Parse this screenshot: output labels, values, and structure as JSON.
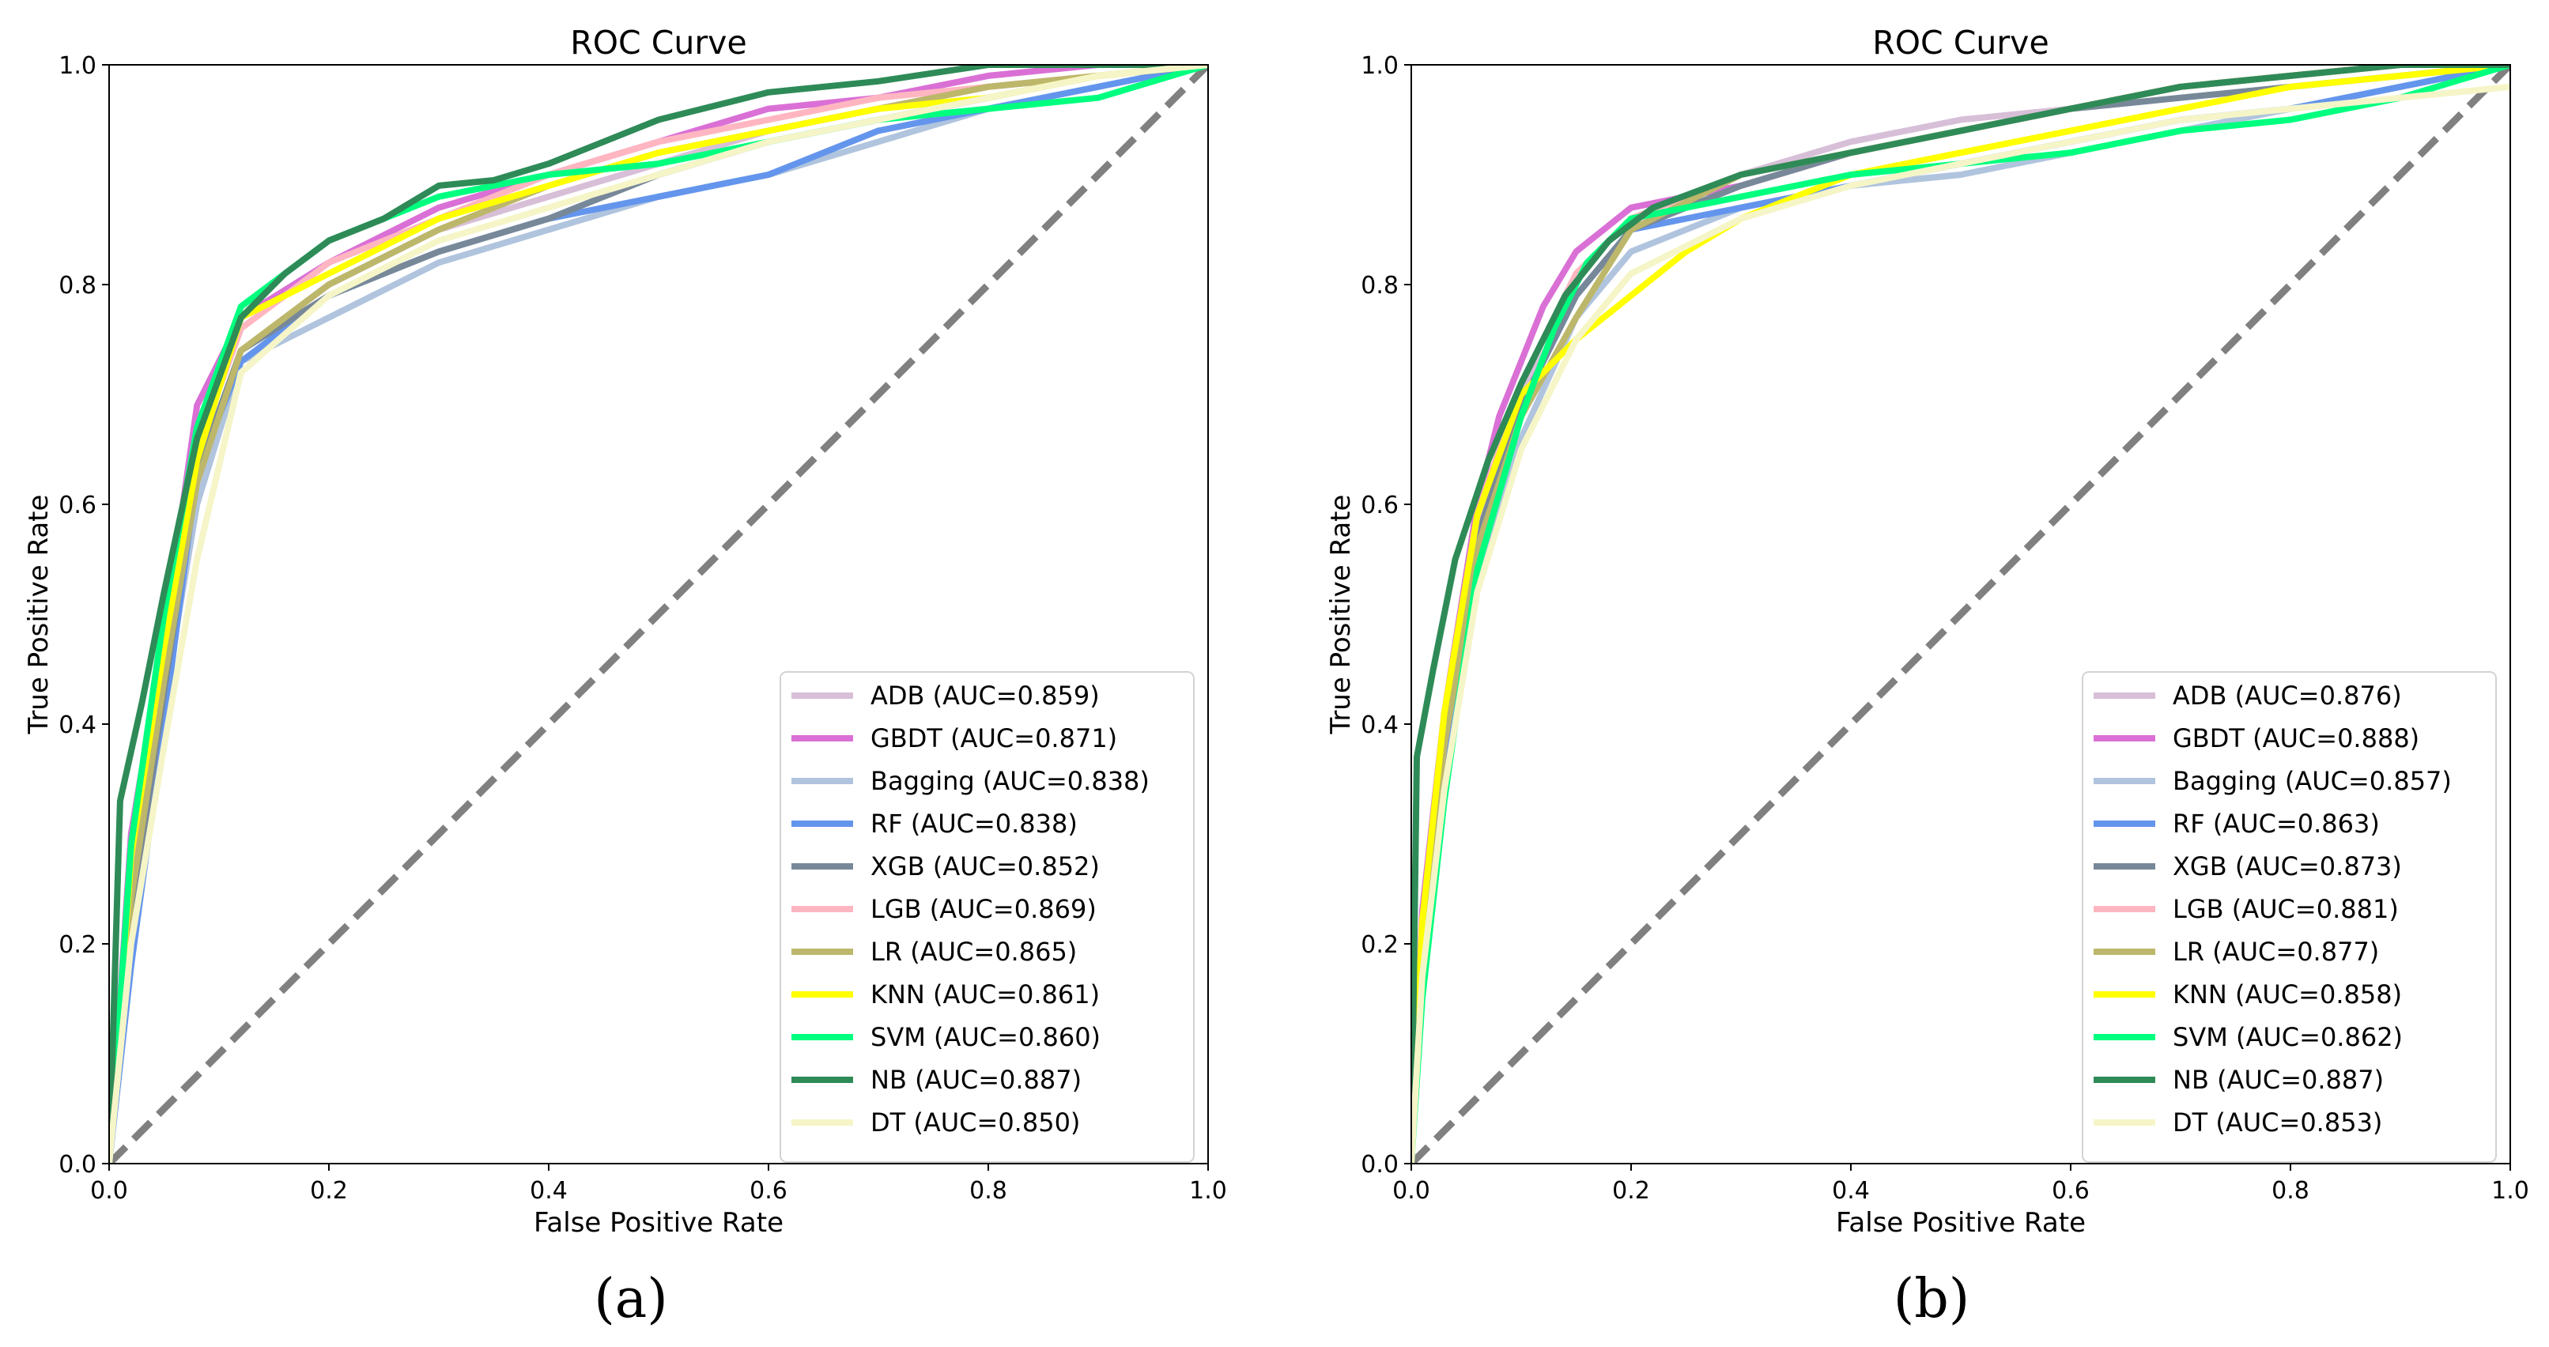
{
  "figure": {
    "panels": [
      {
        "id": "a",
        "label": "(a)"
      },
      {
        "id": "b",
        "label": "(b)"
      }
    ]
  },
  "chart_data": [
    {
      "type": "line",
      "panel": "(a)",
      "title": "ROC Curve",
      "xlabel": "False Positive Rate",
      "ylabel": "True Positive Rate",
      "xlim": [
        0,
        1
      ],
      "ylim": [
        0,
        1
      ],
      "xticks": [
        "0.0",
        "0.2",
        "0.4",
        "0.6",
        "0.8",
        "1.0"
      ],
      "yticks": [
        "0.0",
        "0.2",
        "0.4",
        "0.6",
        "0.8",
        "1.0"
      ],
      "grid": false,
      "legend_position": "lower-right",
      "diagonal": {
        "x": [
          0,
          1
        ],
        "y": [
          0,
          1
        ],
        "color": "#808080",
        "style": "dashed"
      },
      "series": [
        {
          "name": "ADB",
          "legend": "ADB (AUC=0.859)",
          "color": "#d8bfd8",
          "x": [
            0,
            0.02,
            0.05,
            0.08,
            0.12,
            0.2,
            0.3,
            0.4,
            0.5,
            0.6,
            0.7,
            0.8,
            0.9,
            1.0
          ],
          "y": [
            0,
            0.26,
            0.45,
            0.62,
            0.74,
            0.8,
            0.85,
            0.88,
            0.91,
            0.94,
            0.96,
            0.98,
            0.99,
            1.0
          ]
        },
        {
          "name": "GBDT",
          "legend": "GBDT (AUC=0.871)",
          "color": "#da70d6",
          "x": [
            0,
            0.02,
            0.05,
            0.08,
            0.12,
            0.2,
            0.3,
            0.4,
            0.5,
            0.6,
            0.7,
            0.8,
            0.9,
            1.0
          ],
          "y": [
            0,
            0.3,
            0.48,
            0.69,
            0.77,
            0.82,
            0.87,
            0.9,
            0.93,
            0.96,
            0.97,
            0.99,
            1.0,
            1.0
          ]
        },
        {
          "name": "Bagging",
          "legend": "Bagging (AUC=0.838)",
          "color": "#b0c4de",
          "x": [
            0,
            0.02,
            0.05,
            0.08,
            0.12,
            0.2,
            0.3,
            0.4,
            0.5,
            0.6,
            0.7,
            0.8,
            0.9,
            1.0
          ],
          "y": [
            0,
            0.22,
            0.42,
            0.6,
            0.73,
            0.77,
            0.82,
            0.85,
            0.88,
            0.9,
            0.93,
            0.96,
            0.98,
            1.0
          ]
        },
        {
          "name": "RF",
          "legend": "RF (AUC=0.838)",
          "color": "#6495ed",
          "x": [
            0,
            0.02,
            0.05,
            0.08,
            0.12,
            0.2,
            0.3,
            0.4,
            0.5,
            0.6,
            0.7,
            0.8,
            0.9,
            1.0
          ],
          "y": [
            0,
            0.18,
            0.4,
            0.63,
            0.73,
            0.79,
            0.83,
            0.86,
            0.88,
            0.9,
            0.94,
            0.96,
            0.98,
            1.0
          ]
        },
        {
          "name": "XGB",
          "legend": "XGB (AUC=0.852)",
          "color": "#778899",
          "x": [
            0,
            0.02,
            0.05,
            0.08,
            0.12,
            0.2,
            0.3,
            0.4,
            0.5,
            0.6,
            0.7,
            0.8,
            0.9,
            1.0
          ],
          "y": [
            0,
            0.22,
            0.43,
            0.63,
            0.74,
            0.79,
            0.83,
            0.86,
            0.9,
            0.93,
            0.95,
            0.97,
            0.99,
            1.0
          ]
        },
        {
          "name": "LGB",
          "legend": "LGB (AUC=0.869)",
          "color": "#ffb6c1",
          "x": [
            0,
            0.02,
            0.05,
            0.08,
            0.12,
            0.2,
            0.3,
            0.4,
            0.5,
            0.6,
            0.7,
            0.8,
            0.9,
            1.0
          ],
          "y": [
            0,
            0.27,
            0.46,
            0.65,
            0.76,
            0.82,
            0.86,
            0.9,
            0.93,
            0.95,
            0.97,
            0.98,
            0.99,
            1.0
          ]
        },
        {
          "name": "LR",
          "legend": "LR (AUC=0.865)",
          "color": "#bdb76b",
          "x": [
            0,
            0.02,
            0.05,
            0.08,
            0.12,
            0.2,
            0.3,
            0.4,
            0.5,
            0.6,
            0.7,
            0.8,
            0.9,
            1.0
          ],
          "y": [
            0,
            0.24,
            0.44,
            0.62,
            0.74,
            0.8,
            0.85,
            0.89,
            0.92,
            0.94,
            0.96,
            0.98,
            0.99,
            1.0
          ]
        },
        {
          "name": "KNN",
          "legend": "KNN (AUC=0.861)",
          "color": "#ffff00",
          "x": [
            0,
            0.02,
            0.05,
            0.08,
            0.12,
            0.2,
            0.3,
            0.4,
            0.5,
            0.6,
            0.7,
            0.8,
            0.9,
            1.0
          ],
          "y": [
            0,
            0.28,
            0.47,
            0.64,
            0.77,
            0.81,
            0.86,
            0.89,
            0.92,
            0.94,
            0.96,
            0.97,
            0.99,
            1.0
          ]
        },
        {
          "name": "SVM",
          "legend": "SVM (AUC=0.860)",
          "color": "#00ff7f",
          "x": [
            0,
            0.02,
            0.05,
            0.08,
            0.12,
            0.2,
            0.3,
            0.4,
            0.5,
            0.6,
            0.7,
            0.8,
            0.9,
            1.0
          ],
          "y": [
            0,
            0.29,
            0.5,
            0.67,
            0.78,
            0.84,
            0.88,
            0.9,
            0.91,
            0.93,
            0.95,
            0.96,
            0.97,
            1.0
          ]
        },
        {
          "name": "NB",
          "legend": "NB (AUC=0.887)",
          "color": "#2e8b57",
          "x": [
            0,
            0.01,
            0.03,
            0.05,
            0.08,
            0.12,
            0.16,
            0.2,
            0.25,
            0.3,
            0.35,
            0.4,
            0.45,
            0.5,
            0.6,
            0.7,
            0.8,
            0.9,
            1.0
          ],
          "y": [
            0,
            0.33,
            0.42,
            0.52,
            0.66,
            0.77,
            0.81,
            0.84,
            0.86,
            0.89,
            0.895,
            0.91,
            0.93,
            0.95,
            0.975,
            0.985,
            1.0,
            1.0,
            1.0
          ]
        },
        {
          "name": "DT",
          "legend": "DT (AUC=0.850)",
          "color": "#f5f5c8",
          "x": [
            0,
            0.02,
            0.05,
            0.08,
            0.12,
            0.2,
            0.3,
            0.4,
            0.5,
            0.6,
            0.7,
            0.8,
            0.9,
            1.0
          ],
          "y": [
            0,
            0.2,
            0.38,
            0.55,
            0.72,
            0.79,
            0.84,
            0.87,
            0.9,
            0.93,
            0.95,
            0.97,
            0.99,
            1.0
          ]
        }
      ]
    },
    {
      "type": "line",
      "panel": "(b)",
      "title": "ROC Curve",
      "xlabel": "False Positive Rate",
      "ylabel": "True Positive Rate",
      "xlim": [
        0,
        1
      ],
      "ylim": [
        0,
        1
      ],
      "xticks": [
        "0.0",
        "0.2",
        "0.4",
        "0.6",
        "0.8",
        "1.0"
      ],
      "yticks": [
        "0.0",
        "0.2",
        "0.4",
        "0.6",
        "0.8",
        "1.0"
      ],
      "grid": false,
      "legend_position": "lower-right",
      "diagonal": {
        "x": [
          0,
          1
        ],
        "y": [
          0,
          1
        ],
        "color": "#808080",
        "style": "dashed"
      },
      "series": [
        {
          "name": "ADB",
          "legend": "ADB (AUC=0.876)",
          "color": "#d8bfd8",
          "x": [
            0,
            0.01,
            0.03,
            0.06,
            0.1,
            0.15,
            0.2,
            0.3,
            0.4,
            0.5,
            0.6,
            0.7,
            0.8,
            0.9,
            1.0
          ],
          "y": [
            0,
            0.2,
            0.38,
            0.58,
            0.7,
            0.79,
            0.85,
            0.9,
            0.93,
            0.95,
            0.96,
            0.98,
            0.99,
            1.0,
            1.0
          ]
        },
        {
          "name": "GBDT",
          "legend": "GBDT (AUC=0.888)",
          "color": "#da70d6",
          "x": [
            0,
            0.01,
            0.03,
            0.06,
            0.08,
            0.12,
            0.15,
            0.2,
            0.3,
            0.4,
            0.5,
            0.6,
            0.7,
            0.8,
            0.9,
            1.0
          ],
          "y": [
            0,
            0.23,
            0.41,
            0.6,
            0.68,
            0.78,
            0.83,
            0.87,
            0.89,
            0.92,
            0.94,
            0.96,
            0.98,
            0.99,
            1.0,
            1.0
          ]
        },
        {
          "name": "Bagging",
          "legend": "Bagging (AUC=0.857)",
          "color": "#b0c4de",
          "x": [
            0,
            0.01,
            0.03,
            0.06,
            0.1,
            0.15,
            0.2,
            0.3,
            0.4,
            0.5,
            0.6,
            0.7,
            0.8,
            0.9,
            1.0
          ],
          "y": [
            0,
            0.18,
            0.35,
            0.53,
            0.66,
            0.77,
            0.83,
            0.87,
            0.89,
            0.9,
            0.92,
            0.94,
            0.96,
            0.98,
            1.0
          ]
        },
        {
          "name": "RF",
          "legend": "RF (AUC=0.863)",
          "color": "#6495ed",
          "x": [
            0,
            0.01,
            0.03,
            0.06,
            0.1,
            0.15,
            0.2,
            0.3,
            0.4,
            0.5,
            0.6,
            0.7,
            0.8,
            0.9,
            1.0
          ],
          "y": [
            0,
            0.2,
            0.37,
            0.56,
            0.69,
            0.79,
            0.85,
            0.87,
            0.89,
            0.91,
            0.93,
            0.95,
            0.96,
            0.98,
            1.0
          ]
        },
        {
          "name": "XGB",
          "legend": "XGB (AUC=0.873)",
          "color": "#778899",
          "x": [
            0,
            0.01,
            0.03,
            0.06,
            0.1,
            0.15,
            0.2,
            0.3,
            0.4,
            0.5,
            0.6,
            0.7,
            0.8,
            0.9,
            1.0
          ],
          "y": [
            0,
            0.21,
            0.39,
            0.57,
            0.69,
            0.79,
            0.85,
            0.89,
            0.92,
            0.94,
            0.96,
            0.97,
            0.98,
            0.99,
            1.0
          ]
        },
        {
          "name": "LGB",
          "legend": "LGB (AUC=0.881)",
          "color": "#ffb6c1",
          "x": [
            0,
            0.01,
            0.03,
            0.06,
            0.1,
            0.15,
            0.2,
            0.3,
            0.4,
            0.5,
            0.6,
            0.7,
            0.8,
            0.9,
            1.0
          ],
          "y": [
            0,
            0.22,
            0.4,
            0.59,
            0.71,
            0.81,
            0.86,
            0.9,
            0.92,
            0.94,
            0.96,
            0.98,
            0.99,
            1.0,
            1.0
          ]
        },
        {
          "name": "LR",
          "legend": "LR (AUC=0.877)",
          "color": "#bdb76b",
          "x": [
            0,
            0.01,
            0.03,
            0.06,
            0.1,
            0.15,
            0.2,
            0.3,
            0.4,
            0.5,
            0.6,
            0.7,
            0.8,
            0.9,
            1.0
          ],
          "y": [
            0,
            0.2,
            0.38,
            0.56,
            0.68,
            0.77,
            0.85,
            0.9,
            0.92,
            0.94,
            0.96,
            0.98,
            0.99,
            1.0,
            1.0
          ]
        },
        {
          "name": "KNN",
          "legend": "KNN (AUC=0.858)",
          "color": "#ffff00",
          "x": [
            0,
            0.01,
            0.03,
            0.06,
            0.1,
            0.15,
            0.2,
            0.25,
            0.3,
            0.4,
            0.5,
            0.6,
            0.7,
            0.8,
            0.9,
            1.0
          ],
          "y": [
            0,
            0.22,
            0.41,
            0.59,
            0.7,
            0.75,
            0.79,
            0.83,
            0.86,
            0.9,
            0.92,
            0.94,
            0.96,
            0.98,
            0.99,
            1.0
          ]
        },
        {
          "name": "SVM",
          "legend": "SVM (AUC=0.862)",
          "color": "#00ff7f",
          "x": [
            0,
            0.01,
            0.03,
            0.06,
            0.1,
            0.13,
            0.16,
            0.2,
            0.3,
            0.4,
            0.5,
            0.6,
            0.7,
            0.8,
            0.9,
            1.0
          ],
          "y": [
            0,
            0.15,
            0.33,
            0.54,
            0.68,
            0.76,
            0.82,
            0.86,
            0.88,
            0.9,
            0.91,
            0.92,
            0.94,
            0.95,
            0.97,
            1.0
          ]
        },
        {
          "name": "NB",
          "legend": "NB (AUC=0.887)",
          "color": "#2e8b57",
          "x": [
            0,
            0.005,
            0.02,
            0.04,
            0.07,
            0.1,
            0.14,
            0.18,
            0.22,
            0.3,
            0.4,
            0.5,
            0.6,
            0.7,
            0.8,
            0.9,
            1.0
          ],
          "y": [
            0,
            0.37,
            0.45,
            0.55,
            0.64,
            0.71,
            0.79,
            0.84,
            0.87,
            0.9,
            0.92,
            0.94,
            0.96,
            0.98,
            0.99,
            1.0,
            1.0
          ]
        },
        {
          "name": "DT",
          "legend": "DT (AUC=0.853)",
          "color": "#f5f5c8",
          "x": [
            0,
            0.01,
            0.03,
            0.06,
            0.1,
            0.15,
            0.2,
            0.3,
            0.4,
            0.5,
            0.6,
            0.7,
            0.8,
            0.9,
            1.0
          ],
          "y": [
            0,
            0.17,
            0.34,
            0.52,
            0.65,
            0.75,
            0.81,
            0.86,
            0.89,
            0.91,
            0.93,
            0.95,
            0.96,
            0.97,
            0.98
          ]
        }
      ]
    }
  ]
}
